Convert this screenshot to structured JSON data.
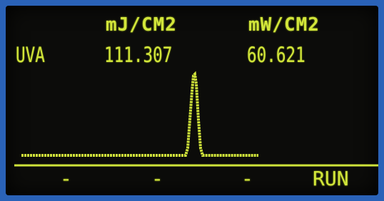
{
  "display": {
    "units": [
      "mJ/CM2",
      "mW/CM2"
    ],
    "row": {
      "label": "UVA",
      "values": [
        "111.307",
        "60.621"
      ]
    },
    "softkeys": [
      "-",
      "-",
      "-",
      "RUN"
    ]
  }
}
